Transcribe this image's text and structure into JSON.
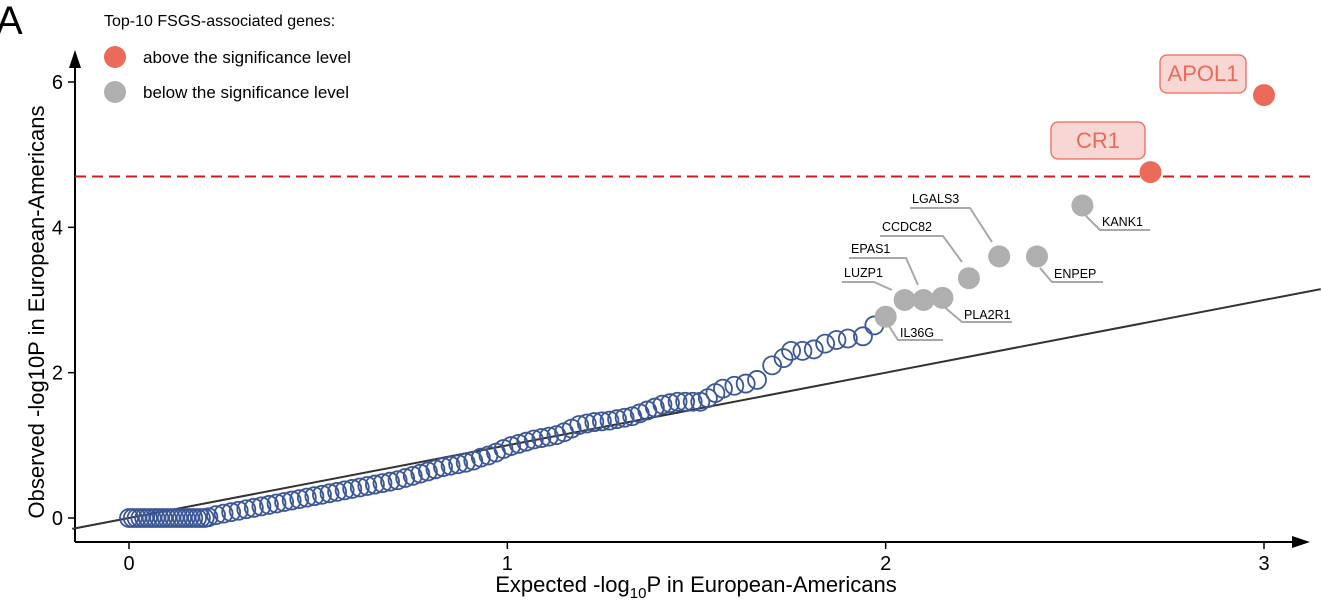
{
  "panel_label": "A",
  "colors": {
    "significant": "#EC6A5A",
    "nonsignificant": "#AFAFAF",
    "background_points": "#3B5796",
    "threshold_line": "#D4191C",
    "callout_fill": "#F8D6D3",
    "reference_line": "#333333"
  },
  "chart_data": {
    "type": "scatter",
    "subtype": "qq-plot",
    "xlabel": {
      "prefix": "Expected -log",
      "sub": "10",
      "suffix": "P in European-Americans"
    },
    "ylabel": "Observed -log10P in European-Americans",
    "xlim": [
      -0.15,
      3.15
    ],
    "ylim": [
      -0.35,
      6.5
    ],
    "xticks": [
      0,
      1,
      2,
      3
    ],
    "yticks": [
      0,
      2,
      4,
      6
    ],
    "significance_threshold": 4.7,
    "reference_line": {
      "slope": 1.0,
      "intercept": 0.0
    },
    "legend": {
      "title": "Top-10 FSGS-associated genes:",
      "entries": [
        {
          "label": "above the significance level",
          "color": "#EC6A5A"
        },
        {
          "label": "below the significance level",
          "color": "#AFAFAF"
        }
      ]
    },
    "highlighted_genes": [
      {
        "gene": "APOL1",
        "x": 3.0,
        "y": 5.82,
        "significant": true,
        "style": "callout"
      },
      {
        "gene": "CR1",
        "x": 2.7,
        "y": 4.76,
        "significant": true,
        "style": "callout"
      },
      {
        "gene": "KANK1",
        "x": 2.52,
        "y": 4.3,
        "significant": false,
        "style": "underline"
      },
      {
        "gene": "ENPEP",
        "x": 2.4,
        "y": 3.6,
        "significant": false,
        "style": "underline"
      },
      {
        "gene": "LGALS3",
        "x": 2.3,
        "y": 3.6,
        "significant": false,
        "style": "underline"
      },
      {
        "gene": "CCDC82",
        "x": 2.22,
        "y": 3.3,
        "significant": false,
        "style": "underline"
      },
      {
        "gene": "PLA2R1",
        "x": 2.15,
        "y": 3.03,
        "significant": false,
        "style": "underline"
      },
      {
        "gene": "EPAS1",
        "x": 2.1,
        "y": 3.0,
        "significant": false,
        "style": "underline"
      },
      {
        "gene": "LUZP1",
        "x": 2.05,
        "y": 3.0,
        "significant": false,
        "style": "underline"
      },
      {
        "gene": "IL36G",
        "x": 2.0,
        "y": 2.77,
        "significant": false,
        "style": "underline"
      }
    ],
    "background_points": [
      [
        0.0,
        0.0
      ],
      [
        0.01,
        0.0
      ],
      [
        0.02,
        0.0
      ],
      [
        0.03,
        0.0
      ],
      [
        0.04,
        0.0
      ],
      [
        0.05,
        0.0
      ],
      [
        0.06,
        0.0
      ],
      [
        0.07,
        0.0
      ],
      [
        0.08,
        0.0
      ],
      [
        0.09,
        0.0
      ],
      [
        0.1,
        0.0
      ],
      [
        0.11,
        0.0
      ],
      [
        0.12,
        0.0
      ],
      [
        0.13,
        0.0
      ],
      [
        0.14,
        0.0
      ],
      [
        0.15,
        0.0
      ],
      [
        0.16,
        0.0
      ],
      [
        0.17,
        0.0
      ],
      [
        0.18,
        0.0
      ],
      [
        0.19,
        0.0
      ],
      [
        0.2,
        0.0
      ],
      [
        0.21,
        0.01
      ],
      [
        0.23,
        0.04
      ],
      [
        0.25,
        0.06
      ],
      [
        0.27,
        0.08
      ],
      [
        0.29,
        0.1
      ],
      [
        0.31,
        0.12
      ],
      [
        0.33,
        0.14
      ],
      [
        0.35,
        0.16
      ],
      [
        0.37,
        0.18
      ],
      [
        0.39,
        0.2
      ],
      [
        0.41,
        0.22
      ],
      [
        0.43,
        0.24
      ],
      [
        0.45,
        0.26
      ],
      [
        0.47,
        0.28
      ],
      [
        0.49,
        0.3
      ],
      [
        0.51,
        0.32
      ],
      [
        0.53,
        0.34
      ],
      [
        0.55,
        0.36
      ],
      [
        0.57,
        0.38
      ],
      [
        0.59,
        0.4
      ],
      [
        0.61,
        0.42
      ],
      [
        0.63,
        0.44
      ],
      [
        0.65,
        0.46
      ],
      [
        0.67,
        0.48
      ],
      [
        0.69,
        0.5
      ],
      [
        0.71,
        0.52
      ],
      [
        0.73,
        0.55
      ],
      [
        0.75,
        0.58
      ],
      [
        0.77,
        0.61
      ],
      [
        0.79,
        0.64
      ],
      [
        0.81,
        0.67
      ],
      [
        0.83,
        0.7
      ],
      [
        0.85,
        0.72
      ],
      [
        0.87,
        0.74
      ],
      [
        0.89,
        0.76
      ],
      [
        0.91,
        0.79
      ],
      [
        0.93,
        0.83
      ],
      [
        0.95,
        0.86
      ],
      [
        0.97,
        0.9
      ],
      [
        0.99,
        0.95
      ],
      [
        1.01,
        0.99
      ],
      [
        1.03,
        1.02
      ],
      [
        1.05,
        1.05
      ],
      [
        1.07,
        1.08
      ],
      [
        1.09,
        1.1
      ],
      [
        1.11,
        1.12
      ],
      [
        1.13,
        1.14
      ],
      [
        1.15,
        1.18
      ],
      [
        1.17,
        1.23
      ],
      [
        1.19,
        1.28
      ],
      [
        1.21,
        1.3
      ],
      [
        1.23,
        1.32
      ],
      [
        1.25,
        1.33
      ],
      [
        1.27,
        1.34
      ],
      [
        1.29,
        1.36
      ],
      [
        1.31,
        1.38
      ],
      [
        1.33,
        1.4
      ],
      [
        1.35,
        1.44
      ],
      [
        1.37,
        1.48
      ],
      [
        1.39,
        1.52
      ],
      [
        1.41,
        1.56
      ],
      [
        1.43,
        1.58
      ],
      [
        1.45,
        1.6
      ],
      [
        1.47,
        1.6
      ],
      [
        1.49,
        1.6
      ],
      [
        1.51,
        1.6
      ],
      [
        1.53,
        1.65
      ],
      [
        1.55,
        1.72
      ],
      [
        1.57,
        1.78
      ],
      [
        1.6,
        1.82
      ],
      [
        1.63,
        1.85
      ],
      [
        1.66,
        1.9
      ],
      [
        1.7,
        2.1
      ],
      [
        1.73,
        2.2
      ],
      [
        1.75,
        2.3
      ],
      [
        1.78,
        2.3
      ],
      [
        1.81,
        2.32
      ],
      [
        1.84,
        2.4
      ],
      [
        1.87,
        2.45
      ],
      [
        1.9,
        2.47
      ],
      [
        1.94,
        2.5
      ],
      [
        1.97,
        2.65
      ]
    ]
  }
}
